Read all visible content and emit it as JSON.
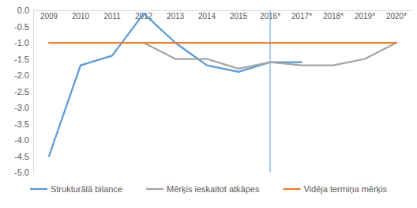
{
  "chart_data": {
    "type": "line",
    "categories": [
      "2009",
      "2010",
      "2011",
      "2012",
      "2013",
      "2014",
      "2015",
      "2016*",
      "2017*",
      "2018*",
      "2019*",
      "2020*"
    ],
    "series": [
      {
        "name": "Strukturālā bilance",
        "color": "#5b9bd5",
        "values": [
          -4.5,
          -1.7,
          -1.4,
          -0.1,
          -1.0,
          -1.7,
          -1.9,
          -1.6,
          -1.6,
          null,
          null,
          null
        ]
      },
      {
        "name": "Mērķis ieskaitot atkāpes",
        "color": "#a5a5a5",
        "values": [
          null,
          null,
          null,
          -1.0,
          -1.5,
          -1.5,
          -1.8,
          -1.6,
          -1.7,
          -1.7,
          -1.5,
          -1.0
        ]
      },
      {
        "name": "Vidēja termiņa mērķis",
        "color": "#ed7d31",
        "values": [
          -1.0,
          -1.0,
          -1.0,
          -1.0,
          -1.0,
          -1.0,
          -1.0,
          -1.0,
          -1.0,
          -1.0,
          -1.0,
          -1.0
        ]
      }
    ],
    "ylim": [
      -5,
      0
    ],
    "yticks": [
      {
        "value": 0,
        "label": "0.0"
      },
      -0.5,
      {
        "value": -1,
        "label": "-1.0"
      },
      -1.5,
      {
        "value": -2,
        "label": "-2.0"
      },
      -2.5,
      {
        "value": -3,
        "label": "-3.0"
      },
      -3.5,
      {
        "value": -4,
        "label": "-4.0"
      },
      -4.5,
      {
        "value": -5,
        "label": "-5.0"
      }
    ],
    "grid": false,
    "legend": "bottom"
  }
}
